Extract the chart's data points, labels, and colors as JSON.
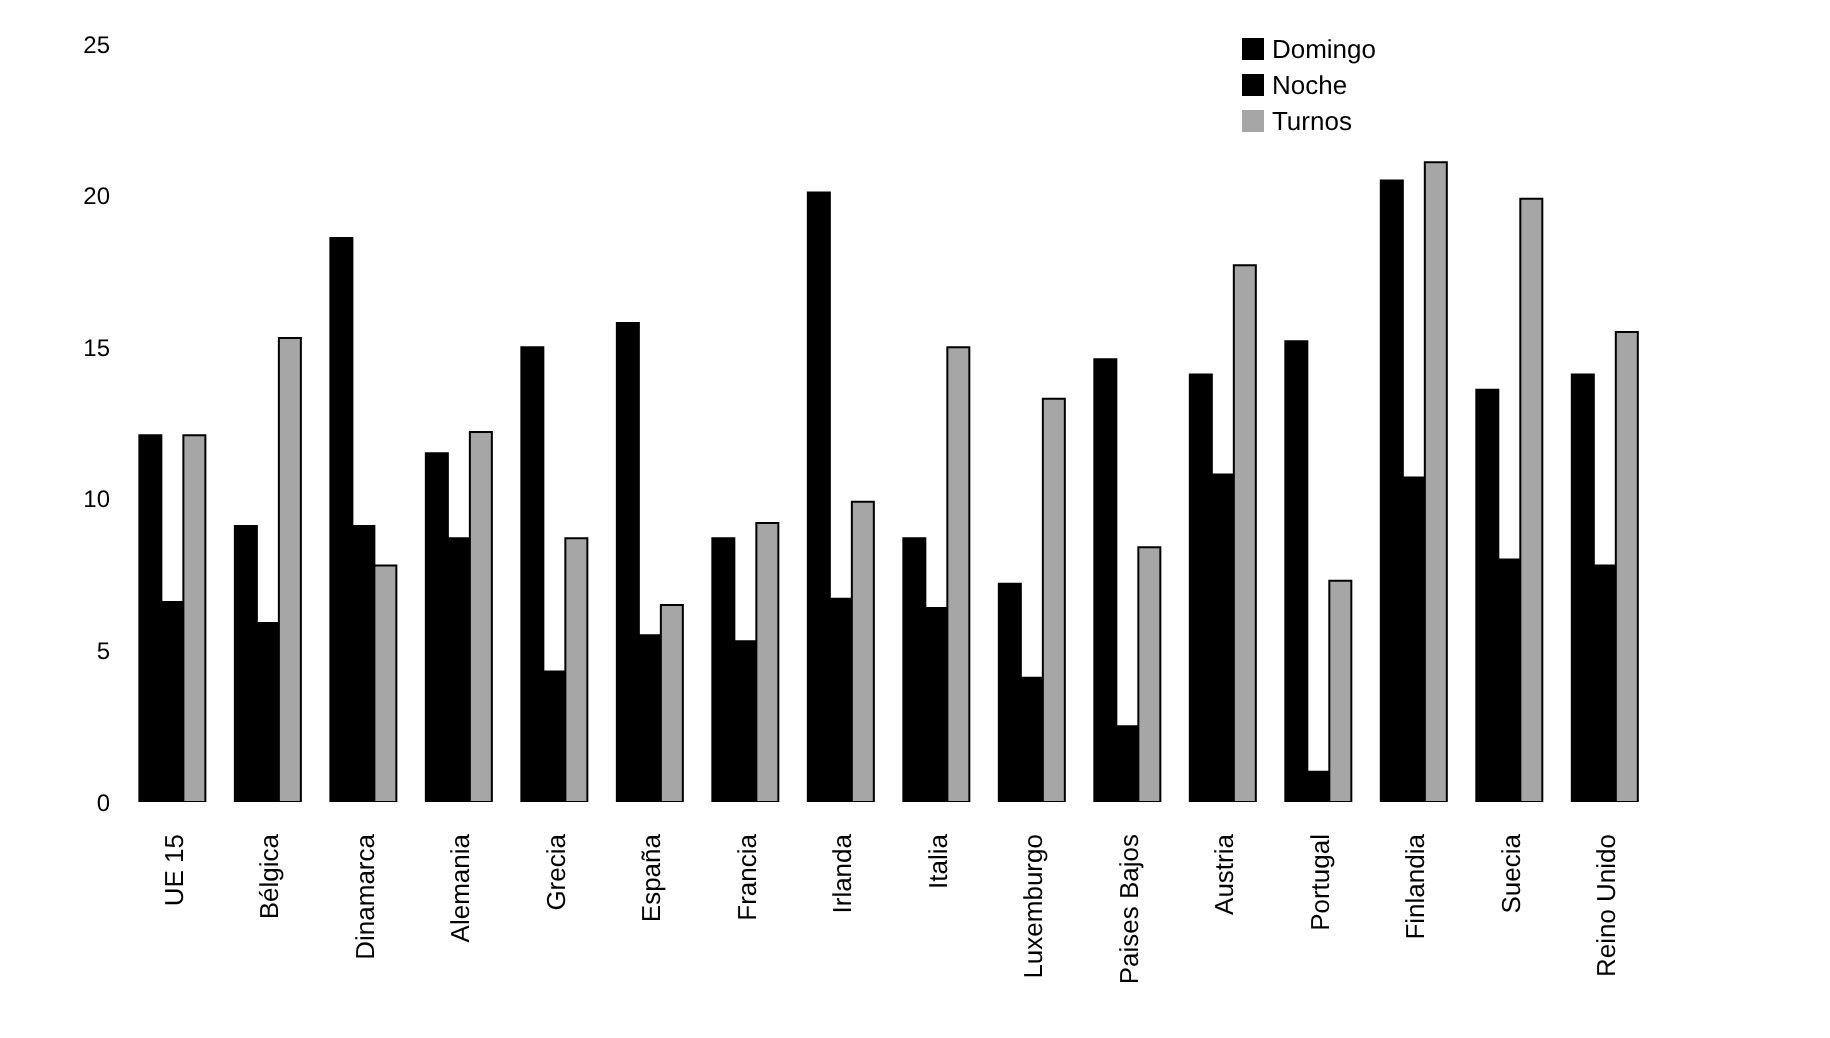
{
  "chart_data": {
    "type": "bar",
    "categories": [
      "UE 15",
      "Bélgica",
      "Dinamarca",
      "Alemania",
      "Grecia",
      "España",
      "Francia",
      "Irlanda",
      "Italia",
      "Luxemburgo",
      "Paises Bajos",
      "Austria",
      "Portugal",
      "Finlandia",
      "Suecia",
      "Reino Unido"
    ],
    "series": [
      {
        "name": "Domingo",
        "color": "#000000",
        "values": [
          12.1,
          9.1,
          18.6,
          11.5,
          15.0,
          15.8,
          8.7,
          20.1,
          8.7,
          7.2,
          14.6,
          14.1,
          15.2,
          20.5,
          13.6,
          14.1
        ]
      },
      {
        "name": "Noche",
        "color": "#000000",
        "values": [
          6.6,
          5.9,
          9.1,
          8.7,
          4.3,
          5.5,
          5.3,
          6.7,
          6.4,
          4.1,
          2.5,
          10.8,
          1.0,
          10.7,
          8.0,
          7.8
        ]
      },
      {
        "name": "Turnos",
        "color": "#a6a6a6",
        "values": [
          12.1,
          15.3,
          7.8,
          12.2,
          8.7,
          6.5,
          9.2,
          9.9,
          15.0,
          13.3,
          8.4,
          17.7,
          7.3,
          21.1,
          19.9,
          15.5
        ]
      }
    ],
    "ylim": [
      0,
      25
    ],
    "yticks": [
      0,
      5,
      10,
      15,
      20,
      25
    ],
    "grid": false,
    "legend": "top right"
  }
}
